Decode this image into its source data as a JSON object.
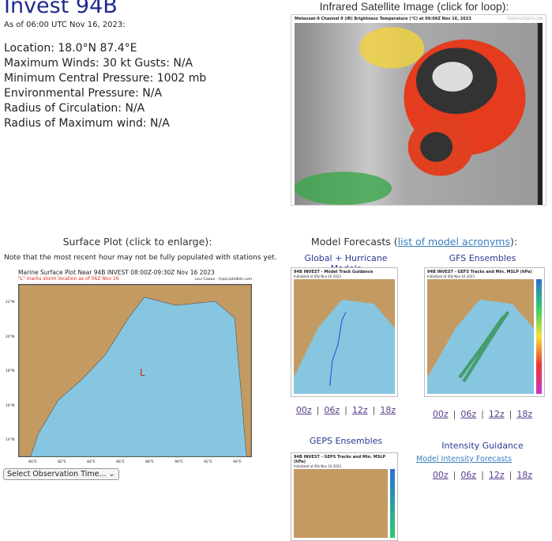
{
  "storm": {
    "title": "Invest 94B",
    "as_of": "As of 06:00 UTC Nov 16, 2023:",
    "details": [
      "Location: 18.0°N 87.4°E",
      "Maximum Winds: 30 kt  Gusts: N/A",
      "Minimum Central Pressure: 1002 mb",
      "Environmental Pressure: N/A",
      "Radius of Circulation: N/A",
      "Radius of Maximum wind: N/A"
    ]
  },
  "satellite": {
    "heading": "Infrared Satellite Image (click for loop):",
    "caption": "Meteosat-9 Channel 9 (IR) Brightness Temperature (°C) at 09:06Z Nov 16, 2023",
    "credit": "TROPICALTIDBITS.COM"
  },
  "surface": {
    "heading": "Surface Plot (click to enlarge):",
    "note": "Note that the most recent hour may not be fully populated with stations yet.",
    "plot_title": "Marine Surface Plot Near 94B INVEST 08:00Z-09:30Z Nov 16 2023",
    "plot_subtitle": "\"L\" marks storm location as of 06Z Nov 16",
    "credit": "Levi Cowan - tropicaltidbits.com",
    "storm_marker": "L",
    "x_ticks": [
      "80°E",
      "82°E",
      "84°E",
      "86°E",
      "88°E",
      "90°E",
      "92°E",
      "94°E"
    ],
    "y_ticks": [
      "22°N",
      "20°N",
      "18°N",
      "16°N",
      "14°N"
    ],
    "select_label": "Select Observation Time..."
  },
  "models": {
    "heading_prefix": "Model Forecasts (",
    "heading_link": "list of model acronyms",
    "heading_suffix": "):",
    "global": {
      "title": "Global + Hurricane Models",
      "img_title": "94B INVEST - Model Track Guidance",
      "img_sub": "Initialized at 00z Nov 16 2023",
      "links": [
        "00z",
        "06z",
        "12z",
        "18z"
      ]
    },
    "gfs": {
      "title": "GFS Ensembles",
      "img_title": "94B INVEST - GEFS Tracks and Min. MSLP (hPa)",
      "img_sub": "Initialized at 00z Nov 16 2023",
      "links": [
        "00z",
        "06z",
        "12z",
        "18z"
      ]
    },
    "geps": {
      "title": "GEPS Ensembles",
      "img_title": "94B INVEST - GEPS Tracks and Min. MSLP (hPa)",
      "img_sub": "Initialized at 00z Nov 16 2023"
    },
    "intensity": {
      "title": "Intensity Guidance",
      "link": "Model Intensity Forecasts",
      "links": [
        "00z",
        "06z",
        "12z",
        "18z"
      ]
    }
  }
}
